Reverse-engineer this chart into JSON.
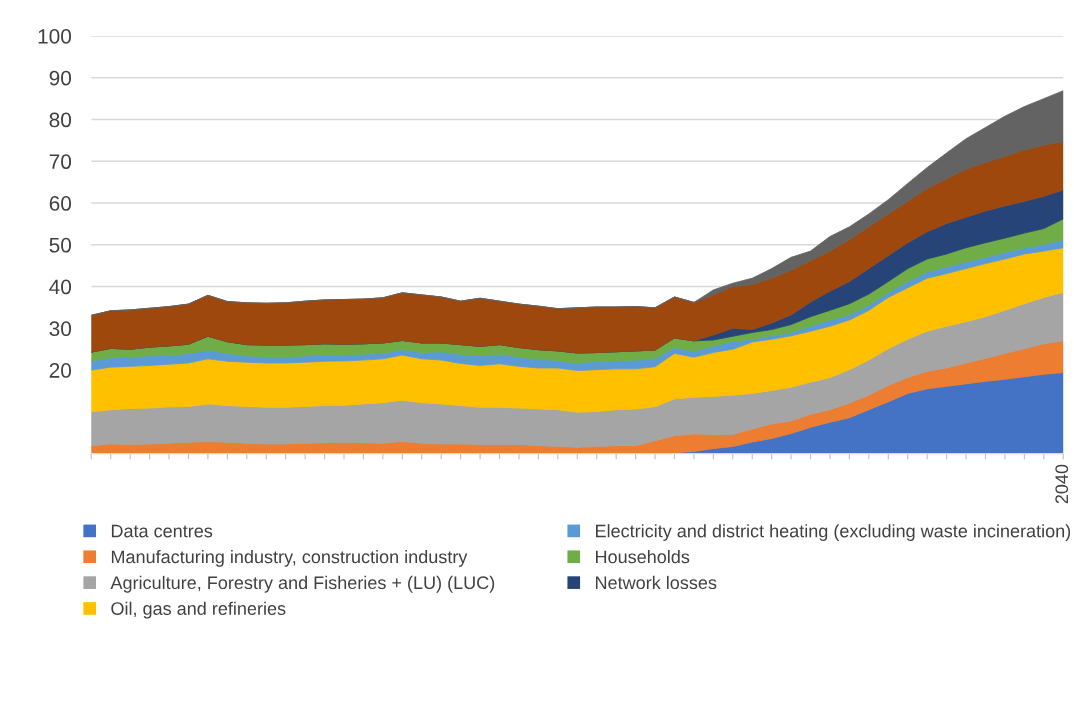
{
  "chart_data": {
    "type": "area",
    "stacked": true,
    "categories": [
      null,
      null,
      null,
      null,
      null,
      null,
      null,
      null,
      null,
      null,
      null,
      null,
      null,
      null,
      null,
      null,
      null,
      null,
      null,
      null,
      null,
      null,
      null,
      null,
      null,
      null,
      null,
      null,
      null,
      null,
      null,
      null,
      null,
      null,
      null,
      null,
      null,
      null,
      null,
      null,
      null,
      null,
      null,
      null,
      null,
      null,
      null,
      null,
      null,
      null,
      "2040"
    ],
    "ylim": [
      0,
      100
    ],
    "yticks": [
      20,
      30,
      40,
      50,
      60,
      70,
      80,
      90,
      100
    ],
    "grid": "y",
    "legend": "bottom",
    "series": [
      {
        "name": "Data centres",
        "color": "#4472c4",
        "values": [
          0,
          0,
          0,
          0,
          0,
          0,
          0,
          0,
          0,
          0,
          0,
          0,
          0,
          0,
          0,
          0,
          0,
          0,
          0,
          0,
          0,
          0,
          0,
          0,
          0,
          0,
          0,
          0,
          0,
          0,
          0.2,
          0.5,
          1.2,
          1.7,
          2.8,
          3.6,
          4.8,
          6.3,
          7.5,
          8.6,
          10.5,
          12.4,
          14.4,
          15.5,
          16.1,
          16.7,
          17.3,
          17.8,
          18.4,
          19.0,
          19.4
        ]
      },
      {
        "name": "Manufacturing industry, construction industry",
        "color": "#ed7d31",
        "values": [
          1.9,
          2.3,
          2.2,
          2.3,
          2.5,
          2.7,
          2.9,
          2.7,
          2.5,
          2.3,
          2.3,
          2.5,
          2.6,
          2.7,
          2.6,
          2.5,
          2.9,
          2.5,
          2.3,
          2.3,
          2.2,
          2.2,
          2.2,
          1.9,
          1.7,
          1.5,
          1.7,
          1.9,
          1.9,
          3.1,
          4.1,
          4.2,
          3.3,
          2.9,
          3.1,
          3.5,
          3.0,
          3.1,
          3.0,
          3.5,
          3.5,
          3.9,
          3.8,
          4.2,
          4.4,
          5.0,
          5.5,
          6.2,
          6.7,
          7.3,
          7.6
        ]
      },
      {
        "name": "Agriculture, Forestry and Fisheries + (LU) (LUC)",
        "color": "#a5a5a5",
        "values": [
          8.1,
          8.2,
          8.6,
          8.6,
          8.7,
          8.6,
          9.0,
          8.8,
          8.8,
          8.8,
          8.8,
          8.8,
          8.9,
          8.9,
          9.3,
          9.7,
          9.9,
          9.7,
          9.6,
          9.2,
          8.9,
          8.9,
          8.7,
          8.8,
          8.8,
          8.4,
          8.4,
          8.6,
          8.8,
          8.1,
          8.8,
          8.8,
          9.2,
          9.4,
          8.5,
          8.0,
          8.1,
          7.7,
          7.7,
          8.0,
          8.4,
          8.8,
          9.2,
          9.6,
          10.0,
          9.9,
          10.0,
          10.3,
          10.8,
          11.1,
          11.6
        ]
      },
      {
        "name": "Oil, gas and refineries",
        "color": "#ffc000",
        "values": [
          10.0,
          10.2,
          10.1,
          10.2,
          10.2,
          10.4,
          10.8,
          10.6,
          10.6,
          10.6,
          10.6,
          10.6,
          10.6,
          10.6,
          10.5,
          10.5,
          10.8,
          10.5,
          10.5,
          10.1,
          10.0,
          10.4,
          10.0,
          9.8,
          10.0,
          10.0,
          10.0,
          9.8,
          9.6,
          9.6,
          10.9,
          9.6,
          10.5,
          11.0,
          12.3,
          12.3,
          12.3,
          12.2,
          12.3,
          11.9,
          11.9,
          12.3,
          12.3,
          12.7,
          12.6,
          12.7,
          12.7,
          12.3,
          11.9,
          11.1,
          10.7
        ]
      },
      {
        "name": "Electricity and district heating (excluding waste incineration)",
        "color": "#5b9bd5",
        "values": [
          2.2,
          2.3,
          2.3,
          2.3,
          2.2,
          2.2,
          2.1,
          1.9,
          1.5,
          1.5,
          1.5,
          1.5,
          1.5,
          1.5,
          1.4,
          1.3,
          1.3,
          1.5,
          2.0,
          2.2,
          2.3,
          2.3,
          2.2,
          2.1,
          1.8,
          1.7,
          2.0,
          1.9,
          2.1,
          1.9,
          1.4,
          1.4,
          1.5,
          1.9,
          0.7,
          0.8,
          0.8,
          1.2,
          1.5,
          1.2,
          1.2,
          1.2,
          1.5,
          1.5,
          1.6,
          1.6,
          1.5,
          1.6,
          1.5,
          1.6,
          1.9
        ]
      },
      {
        "name": "Households",
        "color": "#70ad47",
        "values": [
          2.1,
          2.2,
          1.8,
          2.1,
          2.2,
          2.3,
          3.3,
          2.8,
          2.7,
          2.8,
          2.8,
          2.7,
          2.7,
          2.5,
          2.5,
          2.5,
          2.2,
          2.3,
          2.1,
          2.3,
          2.3,
          2.3,
          2.3,
          2.3,
          2.3,
          2.5,
          2.1,
          2.2,
          2.2,
          2.1,
          2.3,
          2.5,
          1.5,
          1.2,
          1.6,
          1.5,
          1.9,
          2.3,
          2.3,
          2.7,
          2.7,
          2.6,
          3.1,
          3.1,
          3.1,
          3.4,
          3.5,
          3.4,
          3.5,
          3.8,
          5.0
        ]
      },
      {
        "name": "Network losses",
        "color": "#264478",
        "values": [
          0,
          0,
          0,
          0,
          0,
          0,
          0,
          0,
          0,
          0,
          0,
          0,
          0,
          0,
          0,
          0,
          0,
          0,
          0,
          0,
          0,
          0,
          0,
          0,
          0,
          0,
          0,
          0,
          0,
          0,
          0,
          0,
          1.2,
          1.9,
          0.7,
          1.6,
          2.3,
          3.5,
          4.6,
          5.3,
          6.1,
          6.2,
          6.2,
          6.5,
          7.3,
          7.3,
          7.6,
          7.7,
          7.6,
          7.7,
          6.9
        ]
      },
      {
        "color": "#9e480e",
        "values": [
          8.8,
          9.0,
          9.4,
          9.3,
          9.4,
          9.6,
          9.8,
          9.6,
          10.0,
          10.0,
          10.1,
          10.4,
          10.5,
          10.7,
          10.7,
          10.8,
          11.4,
          11.5,
          11.0,
          10.4,
          11.5,
          10.4,
          10.4,
          10.4,
          10.1,
          10.8,
          10.9,
          10.7,
          10.6,
          10.1,
          9.8,
          9.2,
          9.6,
          10.0,
          10.8,
          10.7,
          10.7,
          9.9,
          9.6,
          10.0,
          10.0,
          10.0,
          9.9,
          10.4,
          10.7,
          11.5,
          11.6,
          11.9,
          12.3,
          12.3,
          11.6
        ]
      },
      {
        "color": "#636363",
        "values": [
          0,
          0,
          0,
          0,
          0,
          0,
          0,
          0,
          0,
          0,
          0,
          0,
          0,
          0,
          0,
          0,
          0,
          0,
          0,
          0,
          0,
          0,
          0,
          0,
          0,
          0,
          0,
          0,
          0,
          0,
          0,
          0,
          1.2,
          0.8,
          1.5,
          2.3,
          3.1,
          2.3,
          3.5,
          3.1,
          3.1,
          3.4,
          4.3,
          5.0,
          6.2,
          7.3,
          8.4,
          9.6,
          10.4,
          11.1,
          12.2
        ]
      }
    ]
  }
}
